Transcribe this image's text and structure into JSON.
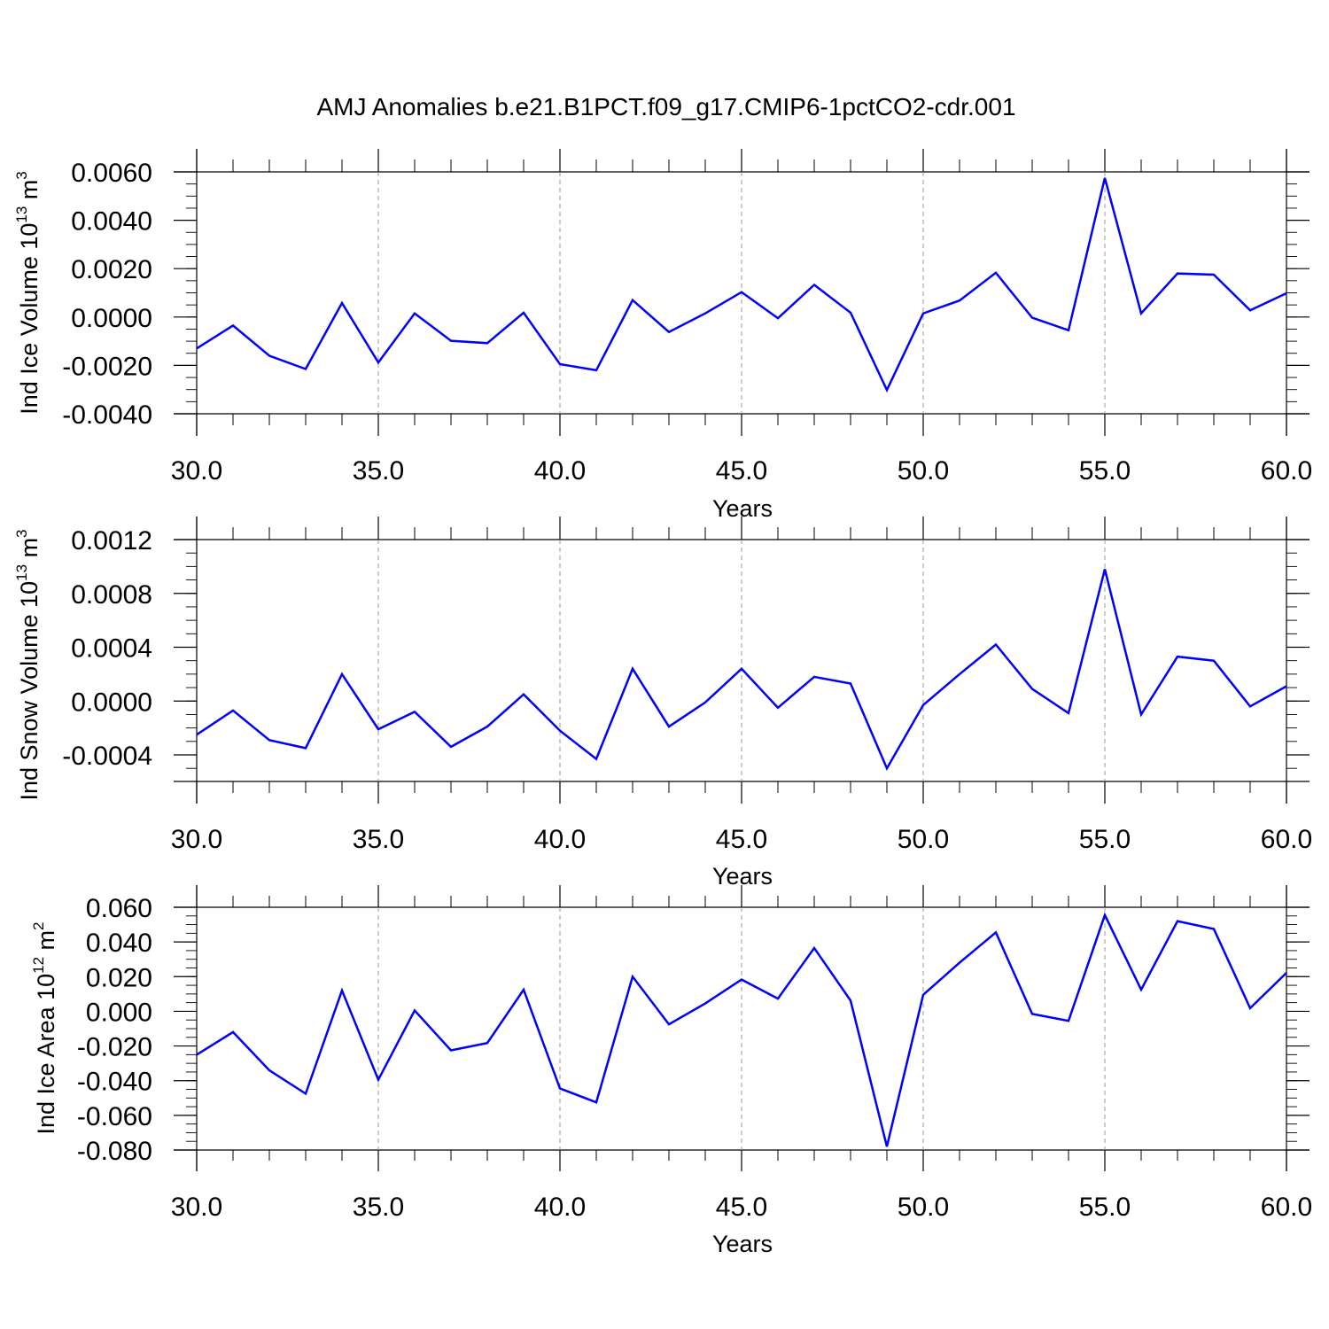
{
  "title": "AMJ Anomalies b.e21.B1PCT.f09_g17.CMIP6-1pctCO2-cdr.001",
  "colors": {
    "series": "#0000ff",
    "axis": "#000000",
    "grid": "#9a9a9a"
  },
  "chart_data": [
    {
      "type": "line",
      "ylabel": {
        "text": "Ind Ice Volume 10",
        "sup": "13",
        "unit": " m",
        "unit_sup": "3"
      },
      "xlabel": "Years",
      "xlim": [
        30,
        60
      ],
      "ylim": [
        -0.004,
        0.006
      ],
      "xticks": [
        "30.0",
        "35.0",
        "40.0",
        "45.0",
        "50.0",
        "55.0",
        "60.0"
      ],
      "yticks": [
        "-0.0040",
        "-0.0020",
        "0.0000",
        "0.0020",
        "0.0040",
        "0.0060"
      ],
      "grid": "vertical dashed at major x ticks",
      "x": [
        30,
        31,
        32,
        33,
        34,
        35,
        36,
        37,
        38,
        39,
        40,
        41,
        42,
        43,
        44,
        45,
        46,
        47,
        48,
        49,
        50,
        51,
        52,
        53,
        54,
        55,
        56,
        57,
        58,
        59,
        60
      ],
      "values": [
        -0.0013,
        -0.00035,
        -0.0016,
        -0.00215,
        0.00058,
        -0.00188,
        0.00015,
        -0.00098,
        -0.00108,
        0.00018,
        -0.00195,
        -0.0022,
        0.0007,
        -0.00062,
        0.00015,
        0.00103,
        -5e-05,
        0.00133,
        0.00018,
        -0.00302,
        0.00015,
        0.00068,
        0.00183,
        -3e-05,
        -0.00055,
        0.00575,
        0.00015,
        0.0018,
        0.00175,
        0.00028,
        0.00098
      ]
    },
    {
      "type": "line",
      "ylabel": {
        "text": "Ind Snow Volume 10",
        "sup": "13",
        "unit": " m",
        "unit_sup": "3"
      },
      "xlabel": "Years",
      "xlim": [
        30,
        60
      ],
      "ylim": [
        -0.0006,
        0.0012
      ],
      "xticks": [
        "30.0",
        "35.0",
        "40.0",
        "45.0",
        "50.0",
        "55.0",
        "60.0"
      ],
      "yticks": [
        "-0.0004",
        "0.0000",
        "0.0004",
        "0.0008",
        "0.0012"
      ],
      "grid": "vertical dashed at major x ticks",
      "x": [
        30,
        31,
        32,
        33,
        34,
        35,
        36,
        37,
        38,
        39,
        40,
        41,
        42,
        43,
        44,
        45,
        46,
        47,
        48,
        49,
        50,
        51,
        52,
        53,
        54,
        55,
        56,
        57,
        58,
        59,
        60
      ],
      "values": [
        -0.00025,
        -7e-05,
        -0.00029,
        -0.00035,
        0.0002,
        -0.00021,
        -8e-05,
        -0.00034,
        -0.00019,
        5e-05,
        -0.00022,
        -0.00043,
        0.00024,
        -0.00019,
        -1e-05,
        0.00024,
        -5e-05,
        0.00018,
        0.00013,
        -0.0005,
        -3e-05,
        0.0002,
        0.00042,
        9e-05,
        -9e-05,
        0.00098,
        -0.0001,
        0.00033,
        0.0003,
        -4e-05,
        0.00011
      ]
    },
    {
      "type": "line",
      "ylabel": {
        "text": "Ind Ice Area 10",
        "sup": "12",
        "unit": " m",
        "unit_sup": "2"
      },
      "xlabel": "Years",
      "xlim": [
        30,
        60
      ],
      "ylim": [
        -0.08,
        0.06
      ],
      "xticks": [
        "30.0",
        "35.0",
        "40.0",
        "45.0",
        "50.0",
        "55.0",
        "60.0"
      ],
      "yticks": [
        "-0.080",
        "-0.060",
        "-0.040",
        "-0.020",
        "0.000",
        "0.020",
        "0.040",
        "0.060"
      ],
      "grid": "vertical dashed at major x ticks",
      "x": [
        30,
        31,
        32,
        33,
        34,
        35,
        36,
        37,
        38,
        39,
        40,
        41,
        42,
        43,
        44,
        45,
        46,
        47,
        48,
        49,
        50,
        51,
        52,
        53,
        54,
        55,
        56,
        57,
        58,
        59,
        60
      ],
      "values": [
        -0.025,
        -0.012,
        -0.034,
        -0.0475,
        0.012,
        -0.0395,
        0.0005,
        -0.0225,
        -0.0183,
        0.0125,
        -0.0445,
        -0.0525,
        0.02,
        -0.0075,
        0.0045,
        0.0183,
        0.0073,
        0.0365,
        0.0062,
        -0.078,
        0.0095,
        0.028,
        0.0455,
        -0.0015,
        -0.0055,
        0.0555,
        0.0125,
        0.052,
        0.0475,
        0.0018,
        0.0222
      ]
    }
  ]
}
